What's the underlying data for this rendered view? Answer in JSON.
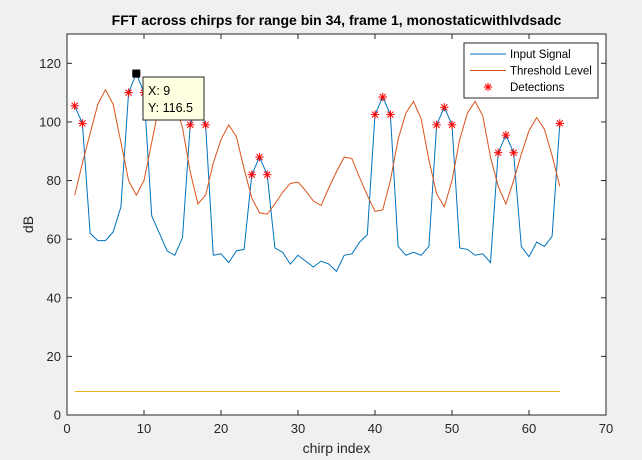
{
  "chart_data": {
    "type": "line",
    "title": "FFT across chirps for range bin 34, frame 1, monostaticwithlvdsadc",
    "xlabel": "chirp index",
    "ylabel": "dB",
    "xlim": [
      0,
      70
    ],
    "ylim": [
      0,
      130
    ],
    "xticks": [
      0,
      10,
      20,
      30,
      40,
      50,
      60,
      70
    ],
    "yticks": [
      0,
      20,
      40,
      60,
      80,
      100,
      120
    ],
    "grid": false,
    "legend_position": "top-right",
    "x": [
      1,
      2,
      3,
      4,
      5,
      6,
      7,
      8,
      9,
      10,
      11,
      12,
      13,
      14,
      15,
      16,
      17,
      18,
      19,
      20,
      21,
      22,
      23,
      24,
      25,
      26,
      27,
      28,
      29,
      30,
      31,
      32,
      33,
      34,
      35,
      36,
      37,
      38,
      39,
      40,
      41,
      42,
      43,
      44,
      45,
      46,
      47,
      48,
      49,
      50,
      51,
      52,
      53,
      54,
      55,
      56,
      57,
      58,
      59,
      60,
      61,
      62,
      63,
      64
    ],
    "series": [
      {
        "name": "Input Signal",
        "color": "#0072bd",
        "style": "line",
        "values": [
          105.5,
          99.5,
          62,
          59.5,
          59.5,
          62.5,
          71,
          110,
          116.5,
          110,
          68,
          62,
          56,
          54.5,
          60.5,
          99,
          106,
          99,
          54.5,
          55,
          52,
          56,
          56.5,
          82,
          88,
          82,
          57,
          55.5,
          51.5,
          54.5,
          52.5,
          50.5,
          52.5,
          51.5,
          49,
          54.5,
          55,
          59,
          61.5,
          102.5,
          108.5,
          102.5,
          57.5,
          54.5,
          55.5,
          54.5,
          57.5,
          99,
          105,
          99,
          57,
          56.5,
          54.5,
          55,
          52,
          89.5,
          95.5,
          89.5,
          57.5,
          54,
          59,
          57.5,
          61,
          99.5
        ]
      },
      {
        "name": "Threshold Level",
        "color": "#d95319",
        "style": "line",
        "values": [
          75,
          86,
          96,
          106,
          111,
          106,
          93,
          80,
          75,
          80,
          93,
          106,
          111,
          107,
          98,
          83,
          72,
          75,
          86,
          94,
          99,
          95,
          84,
          74,
          69,
          68.5,
          72,
          76,
          79,
          79.5,
          76.5,
          73,
          71.5,
          77.5,
          83,
          88,
          87.5,
          81,
          75,
          69.5,
          70,
          80,
          94,
          103,
          107,
          101,
          87,
          75.5,
          71,
          80,
          94,
          103,
          107,
          102,
          88,
          78,
          72,
          80,
          89,
          97,
          101.5,
          97.5,
          88.5,
          78
        ]
      },
      {
        "name": "Detections",
        "color": "#ff0000",
        "style": "marker",
        "x": [
          1,
          2,
          8,
          9,
          10,
          16,
          17,
          18,
          24,
          25,
          26,
          40,
          41,
          42,
          48,
          49,
          50,
          56,
          57,
          58,
          64
        ],
        "values": [
          105.5,
          99.5,
          110,
          116.5,
          110,
          99,
          106,
          99,
          82,
          88,
          82,
          102.5,
          108.5,
          102.5,
          99,
          105,
          99,
          89.5,
          95.5,
          89.5,
          99.5
        ]
      },
      {
        "color": "#edb120",
        "style": "line",
        "x": [
          1,
          64
        ],
        "values": [
          8,
          8
        ]
      }
    ],
    "datatip": {
      "x_text": "X: 9",
      "y_text": "Y: 116.5",
      "x": 9,
      "y": 116.5
    }
  }
}
